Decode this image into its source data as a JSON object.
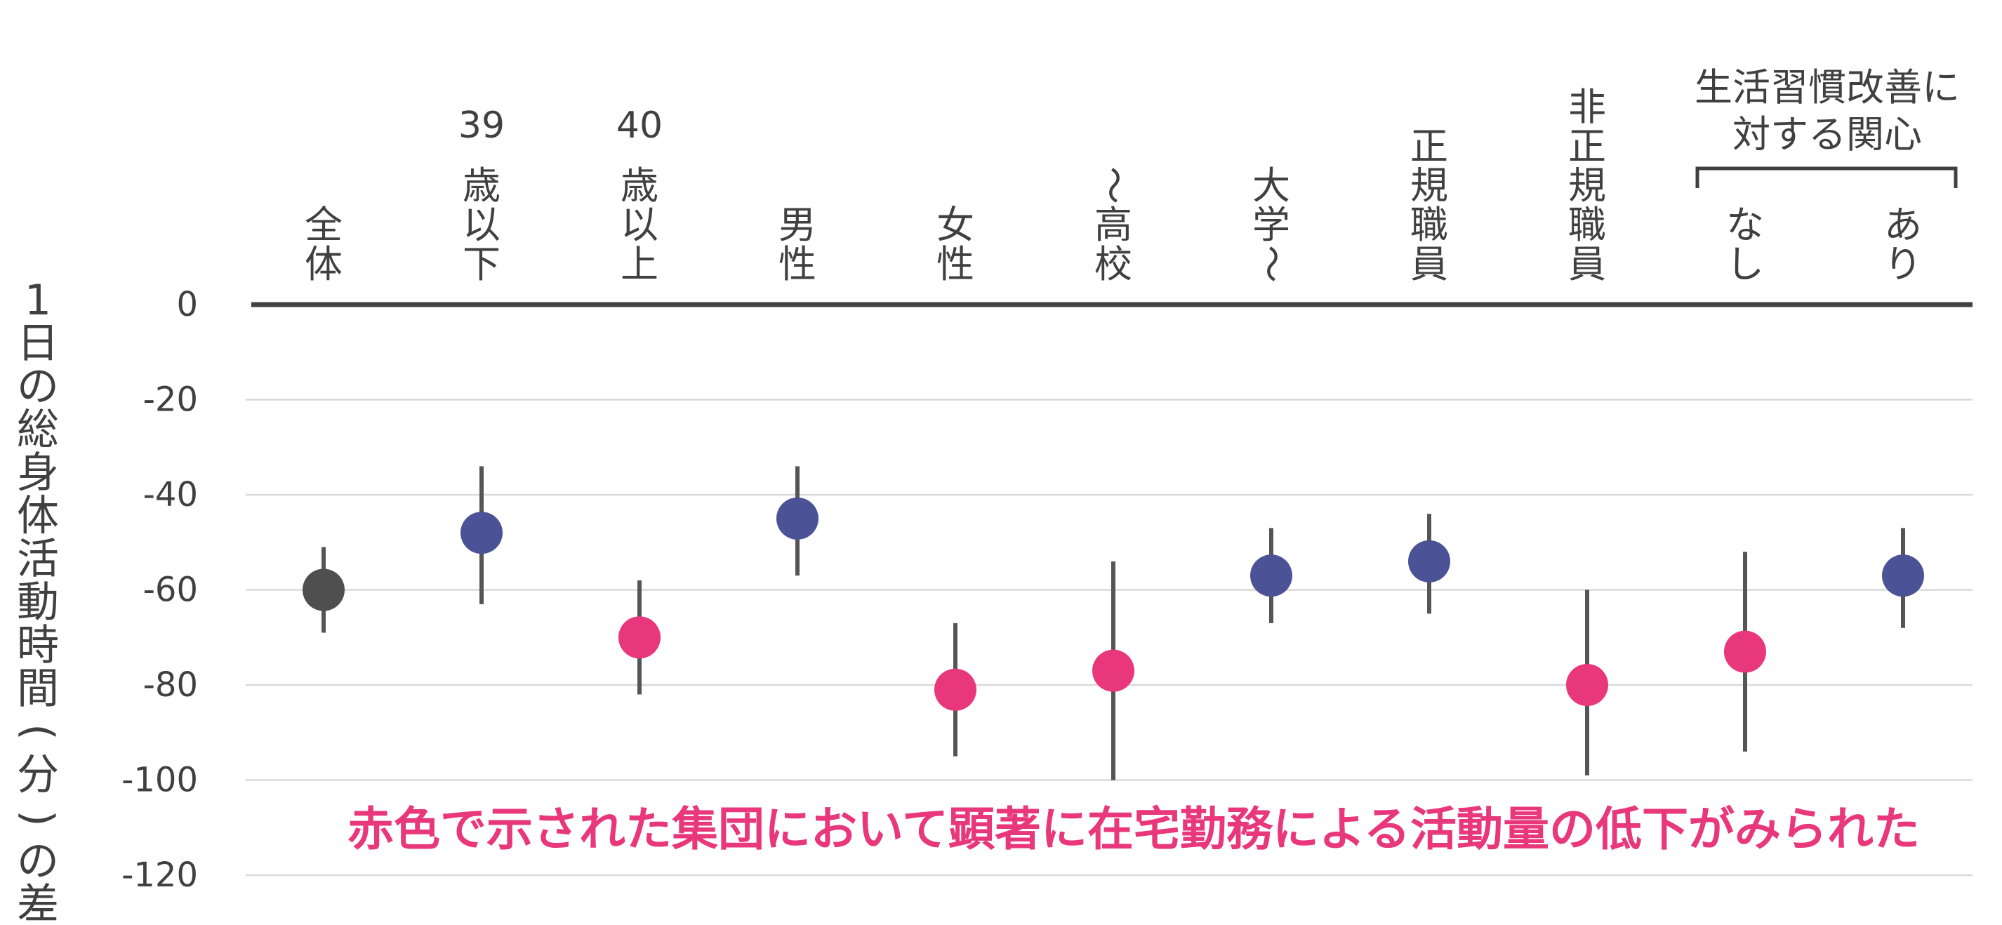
{
  "colors": {
    "overall": "#4f4f4f",
    "normal": "#4b5296",
    "highlight": "#e8377a",
    "axis": "#404040",
    "grid": "#d9d9d9",
    "errorbar": "#555555"
  },
  "chart_data": {
    "type": "scatter",
    "title": "",
    "ylabel": "1日の総身体活動時間(分)の差",
    "ylim": [
      -120,
      0
    ],
    "yticks": [
      "0",
      "-20",
      "-40",
      "-60",
      "-80",
      "-100",
      "-120"
    ],
    "ytick_values": [
      0,
      -20,
      -40,
      -60,
      -80,
      -100,
      -120
    ],
    "grid": true,
    "group_title": "生活習慣改善に対する関心",
    "note": "赤色で示された集団において顕著に在宅勤務による活動量の低下がみられた",
    "categories": [
      {
        "num": "",
        "label": "全体",
        "value": -60,
        "lower": -69,
        "upper": -51,
        "color_key": "overall"
      },
      {
        "num": "39",
        "label": "歳以下",
        "value": -48,
        "lower": -63,
        "upper": -34,
        "color_key": "normal"
      },
      {
        "num": "40",
        "label": "歳以上",
        "value": -70,
        "lower": -82,
        "upper": -58,
        "color_key": "highlight"
      },
      {
        "num": "",
        "label": "男性",
        "value": -45,
        "lower": -57,
        "upper": -34,
        "color_key": "normal"
      },
      {
        "num": "",
        "label": "女性",
        "value": -81,
        "lower": -95,
        "upper": -67,
        "color_key": "highlight"
      },
      {
        "num": "",
        "label": "〜高校",
        "value": -77,
        "lower": -100,
        "upper": -54,
        "color_key": "highlight"
      },
      {
        "num": "",
        "label": "大学〜",
        "value": -57,
        "lower": -67,
        "upper": -47,
        "color_key": "normal"
      },
      {
        "num": "",
        "label": "正規職員",
        "value": -54,
        "lower": -65,
        "upper": -44,
        "color_key": "normal"
      },
      {
        "num": "",
        "label": "非正規職員",
        "value": -80,
        "lower": -99,
        "upper": -60,
        "color_key": "highlight"
      },
      {
        "num": "",
        "label": "なし",
        "value": -73,
        "lower": -94,
        "upper": -52,
        "color_key": "highlight"
      },
      {
        "num": "",
        "label": "あり",
        "value": -57,
        "lower": -68,
        "upper": -47,
        "color_key": "normal"
      }
    ]
  }
}
